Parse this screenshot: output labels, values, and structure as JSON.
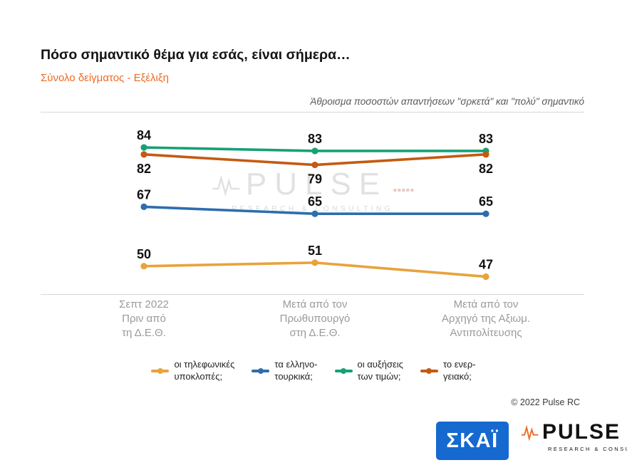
{
  "page": {
    "title": "Πόσο σημαντικό θέμα για εσάς, είναι σήμερα…",
    "subtitle": "Σύνολο δείγματος - Εξέλιξη",
    "annotation": "Άθροισμα ποσοστών απαντήσεων \"σρκετά\" και \"πολύ\" σημαντικό",
    "copyright": "© 2022 Pulse RC"
  },
  "colors": {
    "accent": "#ED6B21",
    "grid": "#D8D8D8",
    "cat": "#9A9A9A",
    "skai": "#1569CF"
  },
  "watermark": {
    "brand": "PULSE",
    "subtext": "RESEARCH & CONSULTING"
  },
  "logos": {
    "skai": "ΣΚΑΪ",
    "pulse": "PULSE",
    "pulse_sub": "RESEARCH & CONSULTING"
  },
  "chart_data": {
    "type": "line",
    "title": "Πόσο σημαντικό θέμα για εσάς, είναι σήμερα…",
    "subtitle": "Σύνολο δείγματος - Εξέλιξη",
    "annotation": "Άθροισμα ποσοστών απαντήσεων \"σρκετά\" και \"πολύ\" σημαντικό",
    "categories": [
      "Σεπτ 2022\nΠριν από\nτη Δ.Ε.Θ.",
      "Μετά από τον\nΠρωθυπουργό\nστη Δ.Ε.Θ.",
      "Μετά από τον\nΑρχηγό της Αξιωμ.\nΑντιπολίτευσης"
    ],
    "series": [
      {
        "name": "οι τηλεφωνικές υποκλοπές",
        "legend": "οι τηλεφωνικές\nυποκλοπές;",
        "color": "#E8A33B",
        "values": [
          50,
          51,
          47
        ],
        "label_pos": "above"
      },
      {
        "name": "τα ελληνοτουρκικά",
        "legend": "τα ελληνο-\nτουρκικά;",
        "color": "#2E6DAE",
        "values": [
          67,
          65,
          65
        ],
        "label_pos": "above"
      },
      {
        "name": "οι αυξήσεις των τιμών",
        "legend": "οι αυξήσεις\nτων τιμών;",
        "color": "#16A075",
        "values": [
          84,
          83,
          83
        ],
        "label_pos": "above"
      },
      {
        "name": "το ενεργειακό",
        "legend": "το ενερ-\nγειακό;",
        "color": "#C45A11",
        "values": [
          82,
          79,
          82
        ],
        "label_pos": "below"
      }
    ],
    "ylim": [
      42,
      94
    ],
    "x_centers": [
      145,
      385,
      625
    ],
    "grid": "top-and-bottom-line-only",
    "legend_position": "bottom"
  }
}
